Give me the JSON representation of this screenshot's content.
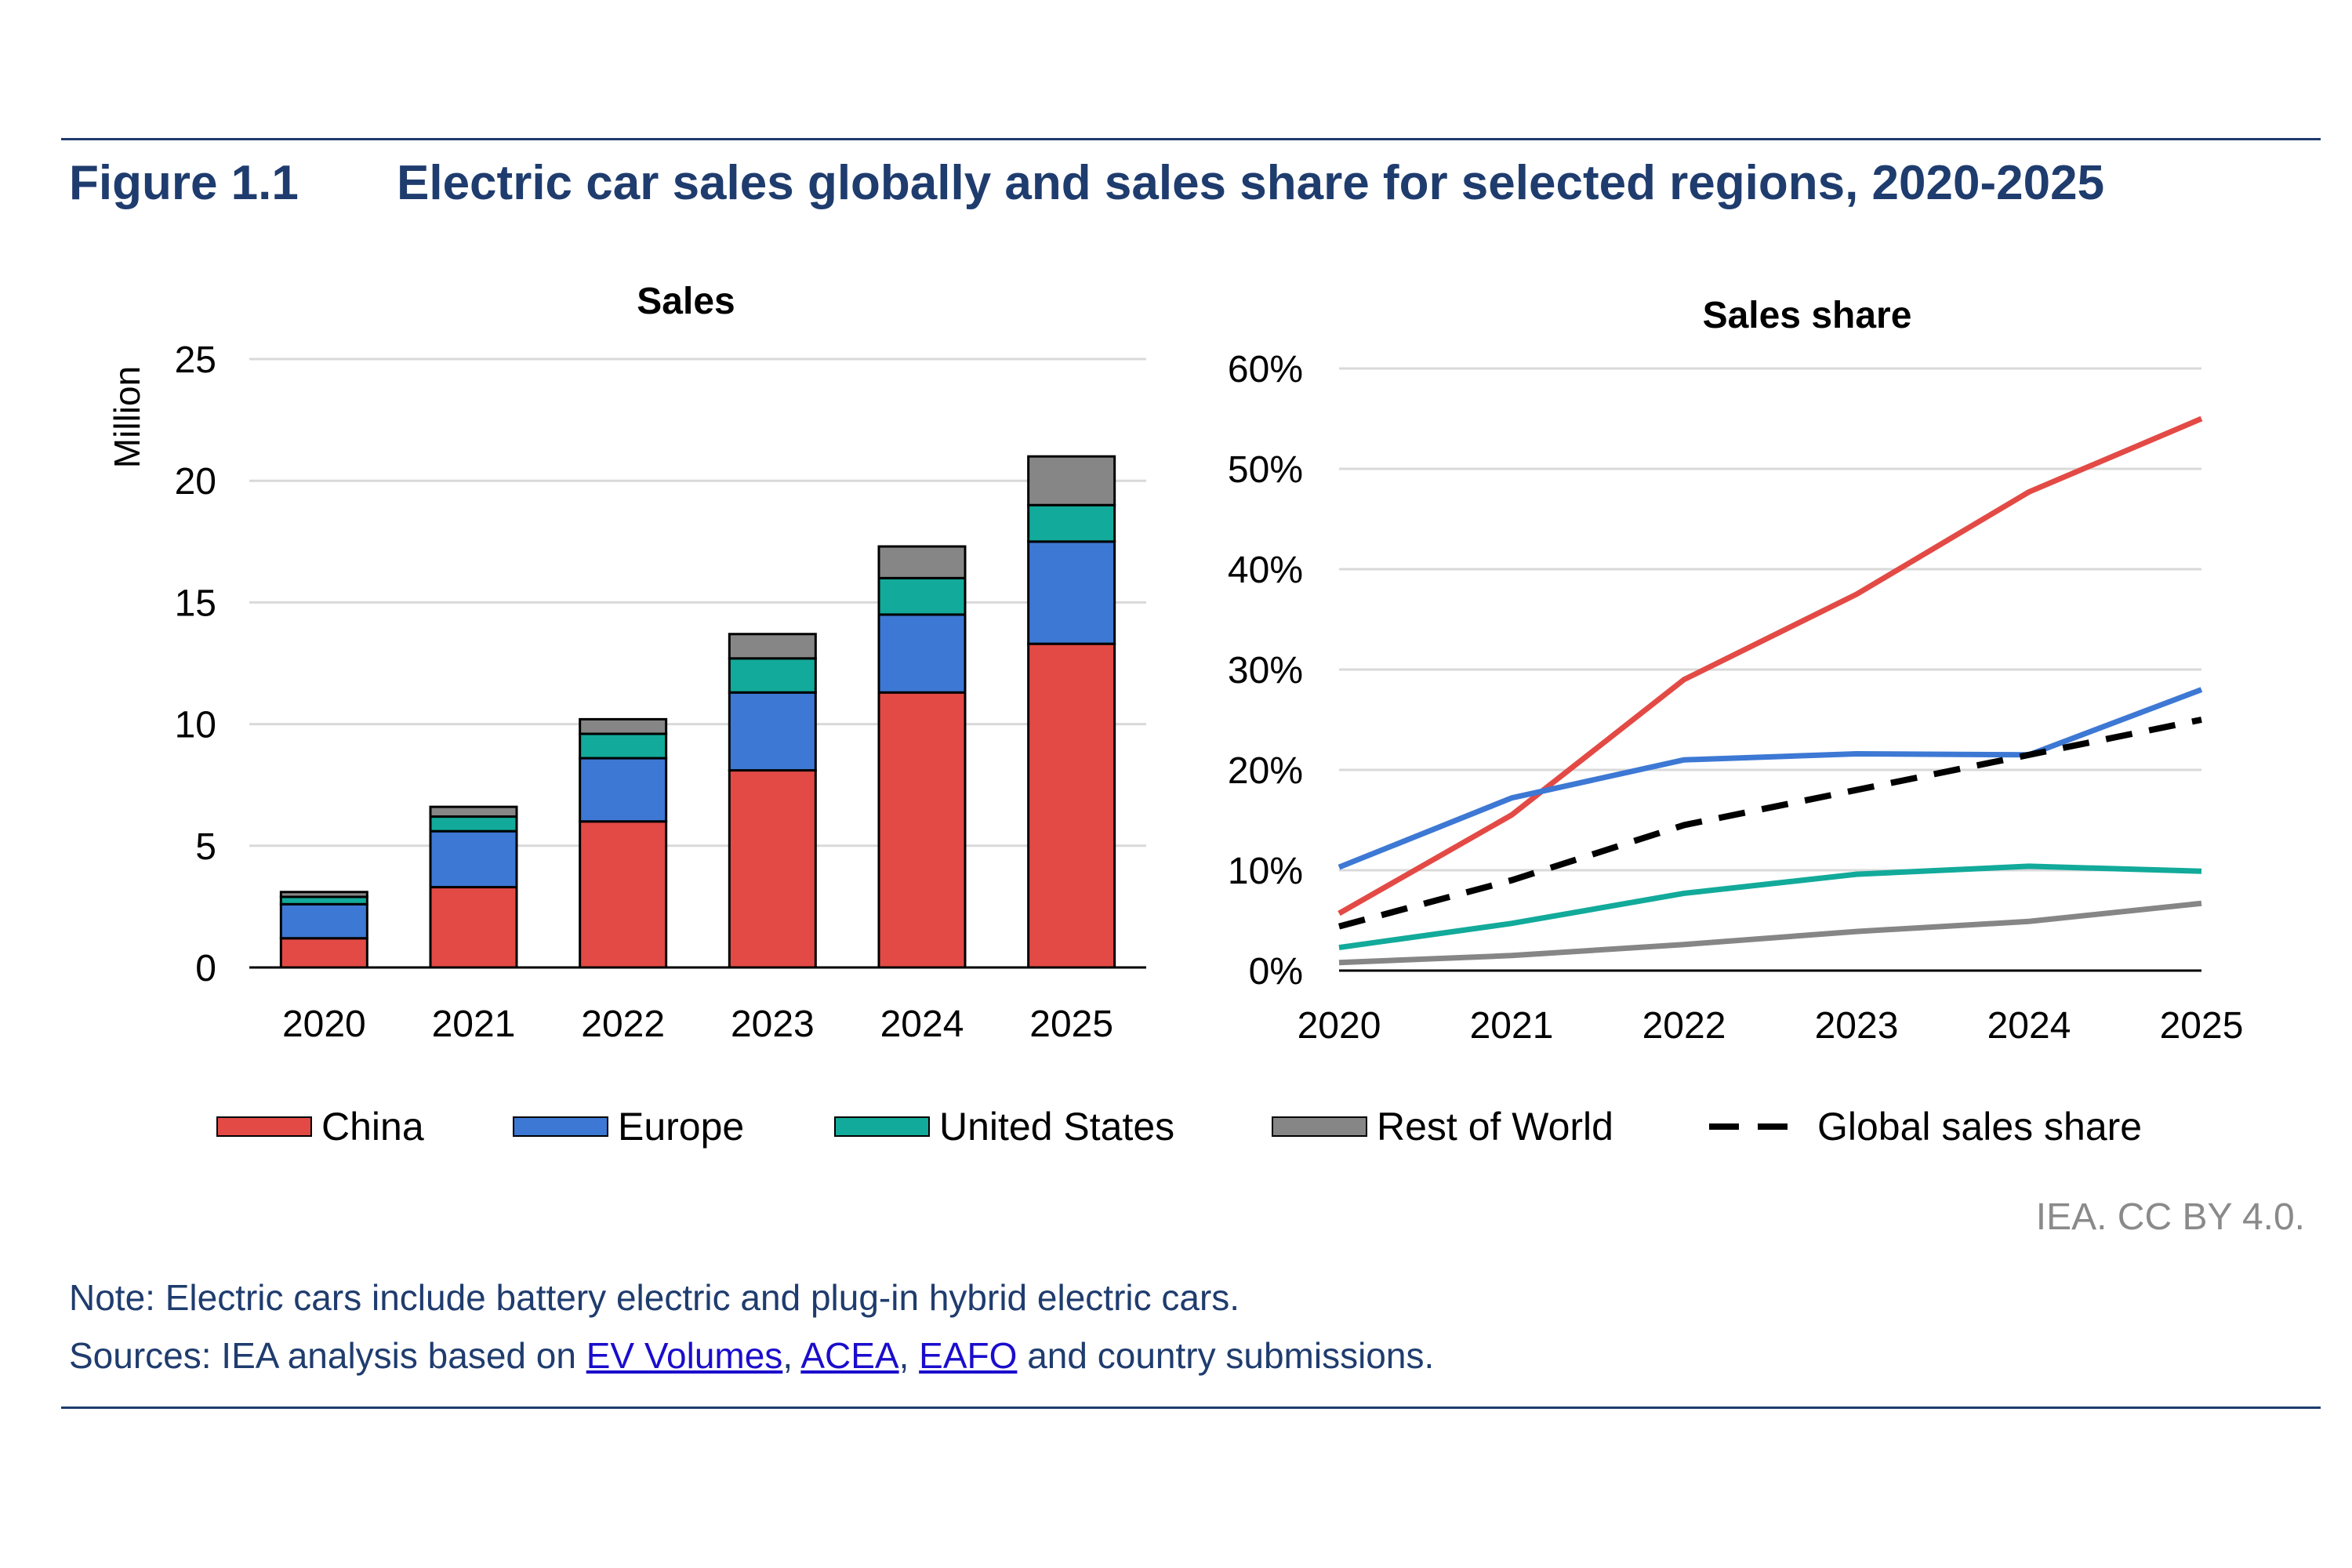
{
  "figure": {
    "number": "Figure 1.1",
    "title": "Electric car sales globally and sales share for selected regions, 2020-2025"
  },
  "colors": {
    "china": "#e34a45",
    "europe": "#3d78d4",
    "united_states": "#12aa9a",
    "rest_of_world": "#868686",
    "global": "#000000",
    "title": "#1f3c6e",
    "grid": "#d9d9d9"
  },
  "legend": {
    "china": "China",
    "europe": "Europe",
    "united_states": "United States",
    "rest_of_world": "Rest of World",
    "global": "Global sales share"
  },
  "chart_data": [
    {
      "type": "bar",
      "stacked": true,
      "title": "Sales",
      "ylabel": "Million",
      "xlabel": "",
      "categories": [
        "2020",
        "2021",
        "2022",
        "2023",
        "2024",
        "2025"
      ],
      "ylim": [
        0,
        25
      ],
      "yticks": [
        "0",
        "5",
        "10",
        "15",
        "20",
        "25"
      ],
      "grid": true,
      "series": [
        {
          "name": "China",
          "values": [
            1.2,
            3.3,
            6.0,
            8.1,
            11.3,
            13.3
          ]
        },
        {
          "name": "Europe",
          "values": [
            1.4,
            2.3,
            2.6,
            3.2,
            3.2,
            4.2
          ]
        },
        {
          "name": "United States",
          "values": [
            0.3,
            0.6,
            1.0,
            1.4,
            1.5,
            1.5
          ]
        },
        {
          "name": "Rest of World",
          "values": [
            0.2,
            0.4,
            0.6,
            1.0,
            1.3,
            2.0
          ]
        }
      ]
    },
    {
      "type": "line",
      "title": "Sales share",
      "xlabel": "",
      "ylabel": "",
      "x": [
        "2020",
        "2021",
        "2022",
        "2023",
        "2024",
        "2025"
      ],
      "ylim": [
        0,
        60
      ],
      "yticks": [
        "0%",
        "10%",
        "20%",
        "30%",
        "40%",
        "50%",
        "60%"
      ],
      "grid": true,
      "series": [
        {
          "name": "China",
          "values": [
            5.7,
            15.5,
            29.0,
            37.5,
            47.7,
            55.0
          ]
        },
        {
          "name": "Europe",
          "values": [
            10.3,
            17.2,
            21.0,
            21.6,
            21.5,
            28.0
          ]
        },
        {
          "name": "United States",
          "values": [
            2.3,
            4.7,
            7.7,
            9.6,
            10.4,
            9.9
          ]
        },
        {
          "name": "Rest of World",
          "values": [
            0.8,
            1.5,
            2.6,
            3.9,
            4.9,
            6.7
          ]
        },
        {
          "name": "Global sales share",
          "values": [
            4.4,
            9.0,
            14.5,
            18.0,
            21.5,
            25.0
          ],
          "dashed": true
        }
      ]
    }
  ],
  "credit": "IEA. CC BY 4.0.",
  "note": {
    "line1": "Note: Electric cars include battery electric and plug-in hybrid electric cars.",
    "sources_prefix": "Sources: IEA analysis based on ",
    "link1": "EV Volumes",
    "sep1": ", ",
    "link2": "ACEA",
    "sep2": ", ",
    "link3": "EAFO",
    "sources_suffix": " and country submissions."
  }
}
